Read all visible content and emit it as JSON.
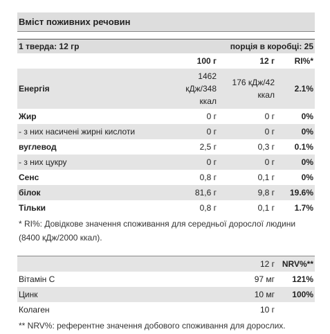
{
  "title": "Вміст поживних речовин",
  "serving": {
    "size": "1 тверда: 12 гр",
    "per_box": "порція в коробці: 25"
  },
  "table": {
    "header": [
      "100 г",
      "12 г",
      "RI%*"
    ],
    "rows": [
      [
        "Енергія",
        "1462 кДж/348 ккал",
        "176 кДж/42 ккал",
        "2.1%"
      ],
      [
        "Жир",
        "0 г",
        "0 г",
        "0%"
      ],
      [
        "- з них насичені жирні кислоти",
        "0 г",
        "0 г",
        "0%"
      ],
      [
        "вуглевод",
        "2,5 г",
        "0,3 г",
        "0.1%"
      ],
      [
        "- з них цукру",
        "0 г",
        "0 г",
        "0%"
      ],
      [
        "Сенс",
        "0,8 г",
        "0,1 г",
        "0%"
      ],
      [
        "білок",
        "81,6 г",
        "9,8 г",
        "19.6%"
      ],
      [
        "Тільки",
        "0,8 г",
        "0,1 г",
        "1.7%"
      ]
    ]
  },
  "footnote": "* RI%: Довідкове значення споживання для середньої дорослої людини (8400 кДж/2000 ккал).",
  "table2": {
    "header": [
      "12 г",
      "NRV%**"
    ],
    "rows": [
      [
        "Вітамін C",
        "97 мг",
        "121%"
      ],
      [
        "Цинк",
        "10 мг",
        "100%"
      ],
      [
        "Колаген",
        "10 г"
      ]
    ]
  },
  "footnote2": "** NRV%: референтне значення добового споживання для дорослих."
}
